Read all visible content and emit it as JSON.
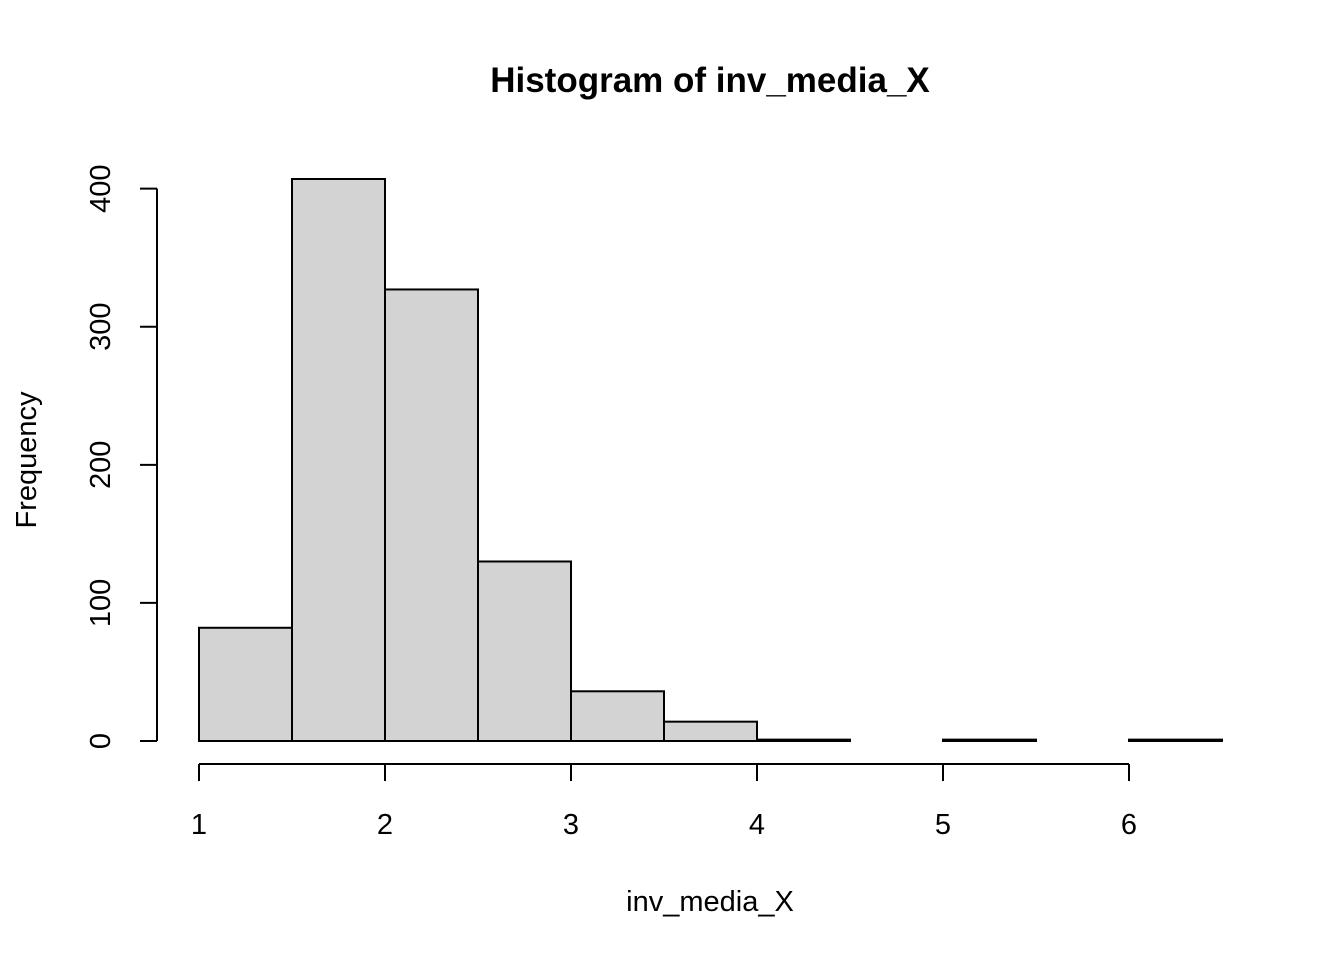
{
  "chart_data": {
    "type": "bar",
    "title": "Histogram of inv_media_X",
    "xlabel": "inv_media_X",
    "ylabel": "Frequency",
    "bins": [
      {
        "from": 1.0,
        "to": 1.5,
        "count": 82
      },
      {
        "from": 1.5,
        "to": 2.0,
        "count": 407
      },
      {
        "from": 2.0,
        "to": 2.5,
        "count": 327
      },
      {
        "from": 2.5,
        "to": 3.0,
        "count": 130
      },
      {
        "from": 3.0,
        "to": 3.5,
        "count": 36
      },
      {
        "from": 3.5,
        "to": 4.0,
        "count": 14
      },
      {
        "from": 4.0,
        "to": 4.5,
        "count": 1
      },
      {
        "from": 4.5,
        "to": 5.0,
        "count": 0
      },
      {
        "from": 5.0,
        "to": 5.5,
        "count": 1
      },
      {
        "from": 5.5,
        "to": 6.0,
        "count": 0
      },
      {
        "from": 6.0,
        "to": 6.5,
        "count": 1
      }
    ],
    "xlim": [
      1,
      6.5
    ],
    "ylim": [
      0,
      407
    ],
    "x_ticks": [
      1,
      2,
      3,
      4,
      5,
      6
    ],
    "y_ticks": [
      0,
      100,
      200,
      300,
      400
    ],
    "grid": false,
    "legend": "none",
    "bar_fill": "#d3d3d3",
    "bar_stroke": "#000000"
  }
}
